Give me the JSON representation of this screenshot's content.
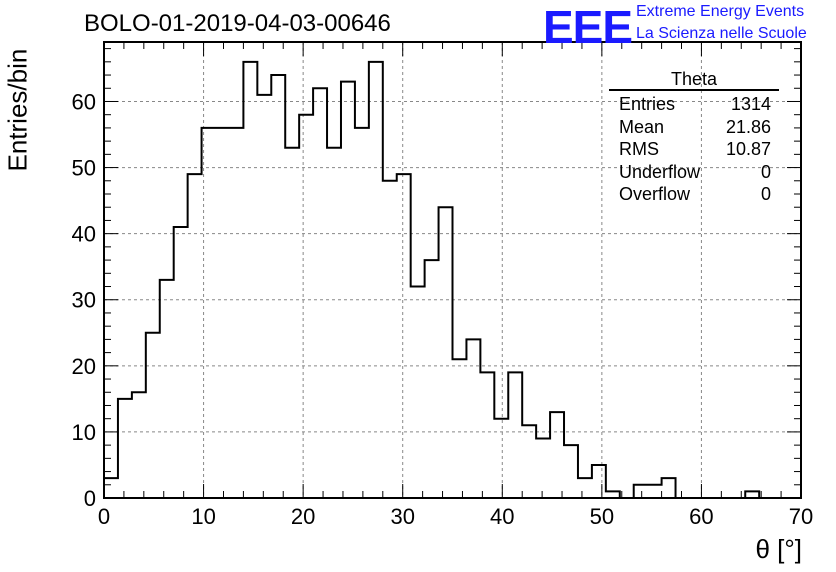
{
  "colors": {
    "logo": "#1a1aff",
    "line": "#000000",
    "grid": "#888888"
  },
  "header": {
    "title": "BOLO-01-2019-04-03-00646",
    "logo_text": "EEE",
    "logo_line1": "Extreme Energy Events",
    "logo_line2": "La Scienza nelle Scuole"
  },
  "stats": {
    "title": "Theta",
    "rows": [
      {
        "label": "Entries",
        "value": "1314"
      },
      {
        "label": "Mean",
        "value": "21.86"
      },
      {
        "label": "RMS",
        "value": "10.87"
      },
      {
        "label": "Underflow",
        "value": "0"
      },
      {
        "label": "Overflow",
        "value": "0"
      }
    ]
  },
  "chart_data": {
    "type": "bar",
    "histogram": true,
    "title": "BOLO-01-2019-04-03-00646",
    "xlabel": "θ [°]",
    "ylabel": "Entries/bin",
    "xlim": [
      0,
      70
    ],
    "ylim": [
      0,
      69
    ],
    "bin_width": 1.4,
    "grid": true,
    "x_ticks": [
      0,
      10,
      20,
      30,
      40,
      50,
      60,
      70
    ],
    "y_ticks": [
      0,
      10,
      20,
      30,
      40,
      50,
      60
    ],
    "values": [
      3,
      15,
      16,
      25,
      33,
      41,
      49,
      56,
      56,
      56,
      66,
      61,
      64,
      53,
      58,
      62,
      53,
      63,
      56,
      66,
      48,
      49,
      32,
      36,
      44,
      21,
      24,
      19,
      12,
      19,
      11,
      9,
      13,
      8,
      3,
      5,
      1,
      0,
      2,
      2,
      3,
      0,
      0,
      0,
      0,
      0,
      1,
      0,
      0,
      0
    ]
  }
}
